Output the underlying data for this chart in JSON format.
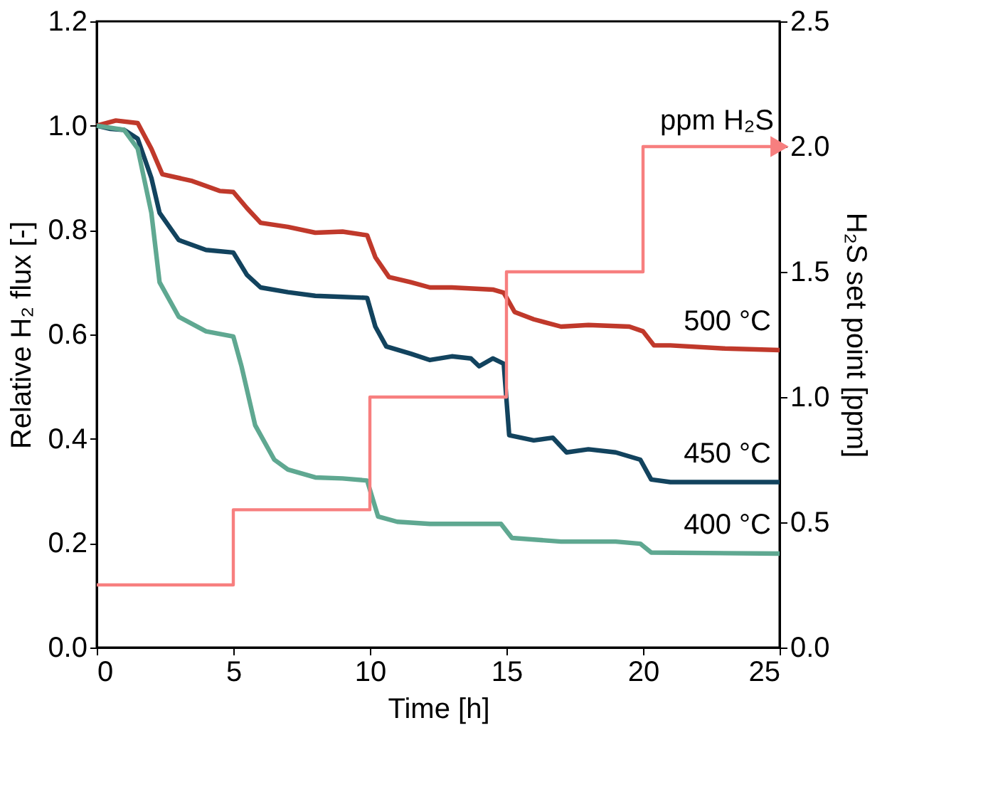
{
  "chart_data": {
    "type": "line",
    "xlabel": "Time [h]",
    "ylabel": "Relative H₂ flux [-]",
    "y2label": "H₂S set point [ppm]",
    "xlim": [
      0,
      25
    ],
    "xticks": [
      0,
      5,
      10,
      15,
      20,
      25
    ],
    "ylim": [
      0,
      1.2
    ],
    "yticks": [
      {
        "value": 0,
        "label": "0.0"
      },
      0.2,
      0.4,
      0.6,
      0.8,
      {
        "value": 1,
        "label": "1.0"
      },
      1.2
    ],
    "y2lim": [
      0,
      2.5
    ],
    "y2ticks": [
      {
        "value": 0,
        "label": "0.0"
      },
      0.5,
      {
        "value": 1,
        "label": "1.0"
      },
      1.5,
      {
        "value": 2,
        "label": "2.0"
      },
      2.5
    ],
    "grid": false,
    "legend": false,
    "marker": "none",
    "line_style": "solid",
    "annotations": [
      "ppm H₂S"
    ],
    "series": [
      {
        "name": "500 °C",
        "color": "#c0392b",
        "x": [
          0,
          0.7,
          1.5,
          2,
          2.4,
          3.5,
          4.5,
          5,
          5.5,
          6,
          7,
          8,
          9,
          9.9,
          10.2,
          10.7,
          11.5,
          12.2,
          13,
          14.5,
          14.9,
          15.3,
          16,
          17,
          18,
          19.5,
          20,
          20.4,
          21,
          23,
          25
        ],
        "values": [
          1.0,
          1.01,
          1.005,
          0.956,
          0.907,
          0.894,
          0.875,
          0.873,
          0.842,
          0.814,
          0.806,
          0.795,
          0.797,
          0.79,
          0.748,
          0.71,
          0.7,
          0.69,
          0.69,
          0.686,
          0.68,
          0.643,
          0.629,
          0.615,
          0.618,
          0.615,
          0.606,
          0.579,
          0.579,
          0.573,
          0.57
        ]
      },
      {
        "name": "450 °C",
        "color": "#12435e",
        "x": [
          0,
          0.5,
          1,
          1.5,
          2,
          2.3,
          3,
          4,
          5,
          5.5,
          6,
          7,
          8,
          9,
          9.9,
          10.2,
          10.6,
          11.5,
          12.2,
          13,
          13.7,
          14,
          14.5,
          14.9,
          15.1,
          16,
          16.7,
          17.2,
          18,
          19,
          19.9,
          20.3,
          21,
          23,
          25
        ],
        "values": [
          1.0,
          0.994,
          0.992,
          0.975,
          0.9,
          0.833,
          0.781,
          0.762,
          0.757,
          0.714,
          0.69,
          0.681,
          0.674,
          0.672,
          0.67,
          0.615,
          0.577,
          0.563,
          0.551,
          0.558,
          0.554,
          0.539,
          0.554,
          0.544,
          0.407,
          0.397,
          0.402,
          0.374,
          0.38,
          0.374,
          0.36,
          0.322,
          0.317,
          0.317,
          0.317
        ]
      },
      {
        "name": "400 °C",
        "color": "#5fa891",
        "x": [
          0,
          1,
          1.5,
          2,
          2.3,
          3,
          4,
          5,
          5.3,
          5.8,
          6.5,
          7,
          8,
          9,
          9.9,
          10.3,
          11,
          12.2,
          14.8,
          15.2,
          17,
          19,
          19.9,
          20.3,
          25
        ],
        "values": [
          1.0,
          0.992,
          0.956,
          0.833,
          0.7,
          0.634,
          0.606,
          0.596,
          0.539,
          0.426,
          0.36,
          0.341,
          0.326,
          0.324,
          0.32,
          0.251,
          0.241,
          0.237,
          0.237,
          0.21,
          0.203,
          0.203,
          0.199,
          0.182,
          0.18
        ]
      },
      {
        "type": "step",
        "axis": "y2",
        "color": "#f77f7f",
        "x": [
          0,
          5,
          10,
          15,
          20,
          25
        ],
        "values": [
          0.25,
          0.55,
          1.0,
          1.5,
          2.0,
          2.0
        ]
      }
    ]
  }
}
